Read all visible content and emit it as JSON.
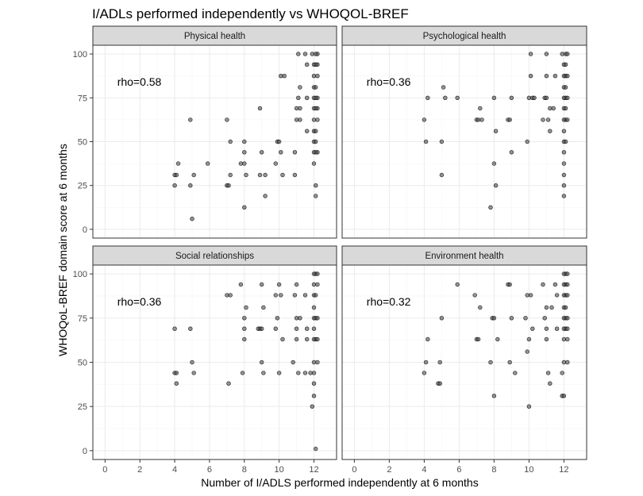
{
  "chart_data": {
    "type": "scatter",
    "title": "I/ADLs performed independently vs WHOQOL-BREF",
    "xlabel": "Number of I/ADLS performed independently at 6 months",
    "ylabel": "WHOQoL-BREF domain score at 6 months",
    "xlim": [
      -0.7,
      13.3
    ],
    "ylim": [
      -5,
      105
    ],
    "x_ticks": [
      0,
      2,
      4,
      6,
      8,
      10,
      12
    ],
    "y_ticks": [
      0,
      25,
      50,
      75,
      100
    ],
    "grid": true,
    "colors": {
      "point_fill": "#4d4d4d",
      "point_stroke": "#000000",
      "strip_fill": "#d9d9d9",
      "panel_border": "#333333",
      "grid_major": "#ebebeb",
      "grid_minor": "#f5f5f5"
    },
    "panels": [
      {
        "label": "Physical health",
        "annotation": "rho=0.58",
        "points": [
          [
            4,
            31
          ],
          [
            4.1,
            31
          ],
          [
            4,
            25
          ],
          [
            4.2,
            37.5
          ],
          [
            4.9,
            25
          ],
          [
            4.9,
            62.5
          ],
          [
            5,
            6
          ],
          [
            5.1,
            31
          ],
          [
            5.9,
            37.5
          ],
          [
            7,
            62.5
          ],
          [
            7,
            25
          ],
          [
            7.1,
            25
          ],
          [
            7.2,
            31
          ],
          [
            7.2,
            50
          ],
          [
            7.8,
            37.5
          ],
          [
            8,
            44
          ],
          [
            8,
            12.5
          ],
          [
            8,
            37.5
          ],
          [
            8,
            50
          ],
          [
            8.1,
            31
          ],
          [
            8.9,
            69
          ],
          [
            8.9,
            31
          ],
          [
            9,
            44
          ],
          [
            9.2,
            31
          ],
          [
            9.2,
            19
          ],
          [
            9.8,
            37.5
          ],
          [
            9.9,
            50
          ],
          [
            10,
            50
          ],
          [
            10.1,
            44
          ],
          [
            10.1,
            87.5
          ],
          [
            10.2,
            31
          ],
          [
            10.3,
            87.5
          ],
          [
            10.9,
            31
          ],
          [
            10.9,
            44
          ],
          [
            11,
            69
          ],
          [
            11,
            62.5
          ],
          [
            11.1,
            75
          ],
          [
            11.1,
            100
          ],
          [
            11.2,
            69
          ],
          [
            11.2,
            81
          ],
          [
            11.2,
            62.5
          ],
          [
            11.5,
            100
          ],
          [
            11.6,
            94
          ],
          [
            11.6,
            75
          ],
          [
            11.6,
            56
          ],
          [
            11.9,
            100
          ],
          [
            12,
            94
          ],
          [
            12,
            87.5
          ],
          [
            12,
            81
          ],
          [
            12,
            75
          ],
          [
            12,
            69
          ],
          [
            12,
            62.5
          ],
          [
            12,
            56
          ],
          [
            12,
            50
          ],
          [
            12,
            44
          ],
          [
            12,
            37.5
          ],
          [
            12.1,
            25
          ],
          [
            12.1,
            19
          ],
          [
            12.2,
            100
          ],
          [
            12.2,
            94
          ],
          [
            12.2,
            87.5
          ],
          [
            12.2,
            75
          ],
          [
            12.2,
            69
          ],
          [
            12.2,
            62.5
          ],
          [
            12.2,
            44
          ],
          [
            12.1,
            100
          ],
          [
            12.1,
            94
          ],
          [
            12.1,
            81
          ],
          [
            12.1,
            75
          ],
          [
            12.1,
            69
          ],
          [
            12.1,
            56
          ],
          [
            12.1,
            50
          ],
          [
            12.1,
            44
          ]
        ]
      },
      {
        "label": "Psychological health",
        "annotation": "rho=0.36",
        "points": [
          [
            4,
            62.5
          ],
          [
            4.1,
            50
          ],
          [
            4.2,
            75
          ],
          [
            5,
            50
          ],
          [
            5,
            31
          ],
          [
            5.1,
            81
          ],
          [
            5.2,
            75
          ],
          [
            5.9,
            75
          ],
          [
            7,
            62.5
          ],
          [
            7.1,
            62.5
          ],
          [
            7.2,
            69
          ],
          [
            7.3,
            62.5
          ],
          [
            7.8,
            12.5
          ],
          [
            8,
            75
          ],
          [
            8,
            37.5
          ],
          [
            8.1,
            56
          ],
          [
            8.1,
            25
          ],
          [
            8.8,
            62.5
          ],
          [
            8.9,
            62.5
          ],
          [
            9,
            44
          ],
          [
            9,
            75
          ],
          [
            9.9,
            50
          ],
          [
            10,
            75
          ],
          [
            10.1,
            87.5
          ],
          [
            10.1,
            100
          ],
          [
            10.2,
            75
          ],
          [
            10.3,
            75
          ],
          [
            10.8,
            62.5
          ],
          [
            10.9,
            75
          ],
          [
            11,
            75
          ],
          [
            11,
            87.5
          ],
          [
            11,
            100
          ],
          [
            11.1,
            62.5
          ],
          [
            11.2,
            69
          ],
          [
            11.2,
            56
          ],
          [
            11.4,
            69
          ],
          [
            11.5,
            87.5
          ],
          [
            11.9,
            100
          ],
          [
            12,
            94
          ],
          [
            12,
            87.5
          ],
          [
            12,
            81
          ],
          [
            12,
            75
          ],
          [
            12,
            69
          ],
          [
            12,
            62.5
          ],
          [
            12,
            56
          ],
          [
            12,
            50
          ],
          [
            12,
            44
          ],
          [
            12,
            37.5
          ],
          [
            12,
            31
          ],
          [
            12,
            25
          ],
          [
            12,
            19
          ],
          [
            12.1,
            100
          ],
          [
            12.1,
            94
          ],
          [
            12.1,
            87.5
          ],
          [
            12.1,
            81
          ],
          [
            12.1,
            75
          ],
          [
            12.1,
            69
          ],
          [
            12.1,
            62.5
          ],
          [
            12.1,
            50
          ],
          [
            12.2,
            100
          ],
          [
            12.2,
            87.5
          ],
          [
            12.2,
            75
          ],
          [
            12.2,
            62.5
          ]
        ]
      },
      {
        "label": "Social relationships",
        "annotation": "rho=0.36",
        "points": [
          [
            4,
            69
          ],
          [
            4,
            44
          ],
          [
            4.1,
            44
          ],
          [
            4.1,
            38
          ],
          [
            4.9,
            69
          ],
          [
            5,
            50
          ],
          [
            5.1,
            44
          ],
          [
            7,
            88
          ],
          [
            7.1,
            38
          ],
          [
            7.2,
            88
          ],
          [
            7.8,
            94
          ],
          [
            7.9,
            44
          ],
          [
            8,
            69
          ],
          [
            8,
            75
          ],
          [
            8,
            63
          ],
          [
            8.1,
            81
          ],
          [
            8.8,
            69
          ],
          [
            8.9,
            69
          ],
          [
            9,
            69
          ],
          [
            9,
            94
          ],
          [
            9,
            50
          ],
          [
            9.1,
            44
          ],
          [
            9.1,
            81
          ],
          [
            9.8,
            69
          ],
          [
            9.8,
            88
          ],
          [
            9.9,
            75
          ],
          [
            10,
            44
          ],
          [
            10,
            94
          ],
          [
            10.1,
            88
          ],
          [
            10.2,
            63
          ],
          [
            10.8,
            50
          ],
          [
            10.9,
            88
          ],
          [
            11,
            75
          ],
          [
            11,
            69
          ],
          [
            11,
            63
          ],
          [
            11,
            94
          ],
          [
            11.1,
            44
          ],
          [
            11.2,
            75
          ],
          [
            11.5,
            88
          ],
          [
            11.5,
            44
          ],
          [
            11.6,
            69
          ],
          [
            11.6,
            63
          ],
          [
            11.8,
            44
          ],
          [
            11.9,
            25
          ],
          [
            12,
            100
          ],
          [
            12,
            94
          ],
          [
            12,
            88
          ],
          [
            12,
            81
          ],
          [
            12,
            75
          ],
          [
            12,
            69
          ],
          [
            12,
            63
          ],
          [
            12,
            50
          ],
          [
            12,
            44
          ],
          [
            12,
            38
          ],
          [
            12,
            31
          ],
          [
            12.1,
            100
          ],
          [
            12.1,
            88
          ],
          [
            12.1,
            75
          ],
          [
            12.1,
            63
          ],
          [
            12.1,
            1
          ],
          [
            12.2,
            100
          ],
          [
            12.2,
            94
          ],
          [
            12.2,
            75
          ],
          [
            12.2,
            63
          ],
          [
            12.2,
            50
          ]
        ]
      },
      {
        "label": "Environment health",
        "annotation": "rho=0.32",
        "points": [
          [
            4,
            44
          ],
          [
            4.1,
            50
          ],
          [
            4.2,
            63
          ],
          [
            4.8,
            38
          ],
          [
            4.9,
            50
          ],
          [
            4.9,
            38
          ],
          [
            5,
            75
          ],
          [
            5.9,
            94
          ],
          [
            6.9,
            88
          ],
          [
            7,
            63
          ],
          [
            7.1,
            63
          ],
          [
            7.2,
            81
          ],
          [
            7.8,
            50
          ],
          [
            7.9,
            75
          ],
          [
            8,
            31
          ],
          [
            8,
            75
          ],
          [
            8.2,
            63
          ],
          [
            8.8,
            94
          ],
          [
            8.9,
            94
          ],
          [
            8.9,
            50
          ],
          [
            9,
            75
          ],
          [
            9.2,
            44
          ],
          [
            9.8,
            75
          ],
          [
            9.9,
            88
          ],
          [
            9.9,
            56
          ],
          [
            10,
            25
          ],
          [
            10,
            63
          ],
          [
            10.1,
            88
          ],
          [
            10.2,
            69
          ],
          [
            10.8,
            94
          ],
          [
            10.9,
            75
          ],
          [
            11,
            69
          ],
          [
            11,
            63
          ],
          [
            11,
            81
          ],
          [
            11.1,
            44
          ],
          [
            11.2,
            38
          ],
          [
            11.3,
            81
          ],
          [
            11.5,
            94
          ],
          [
            11.6,
            88
          ],
          [
            11.6,
            69
          ],
          [
            11.9,
            44
          ],
          [
            11.9,
            31
          ],
          [
            12,
            100
          ],
          [
            12,
            94
          ],
          [
            12,
            88
          ],
          [
            12,
            81
          ],
          [
            12,
            75
          ],
          [
            12,
            69
          ],
          [
            12,
            63
          ],
          [
            12,
            50
          ],
          [
            12,
            31
          ],
          [
            12.1,
            100
          ],
          [
            12.1,
            94
          ],
          [
            12.1,
            88
          ],
          [
            12.1,
            81
          ],
          [
            12.1,
            75
          ],
          [
            12.1,
            69
          ],
          [
            12.2,
            100
          ],
          [
            12.2,
            94
          ],
          [
            12.2,
            88
          ],
          [
            12.2,
            75
          ],
          [
            12.2,
            69
          ],
          [
            12.2,
            63
          ],
          [
            12.2,
            50
          ]
        ]
      }
    ]
  }
}
